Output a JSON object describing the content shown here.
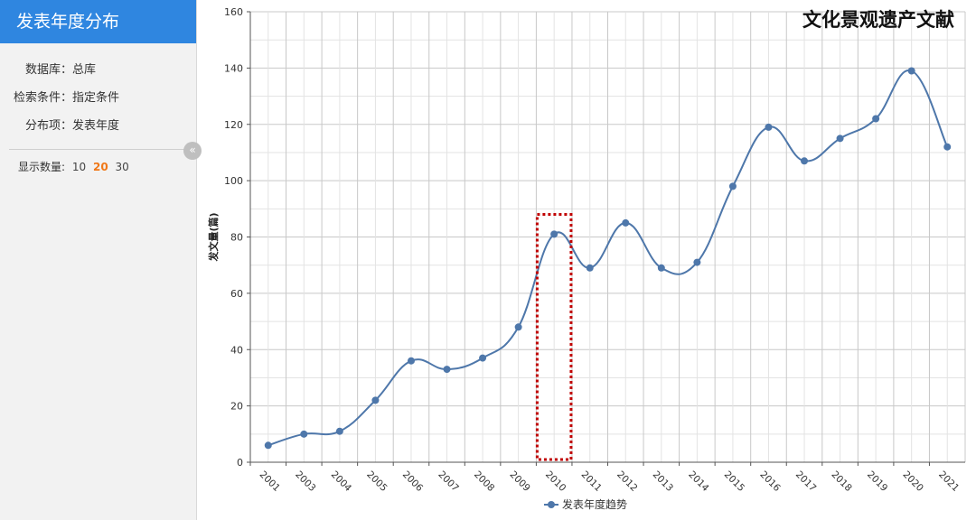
{
  "sidebar": {
    "title": "发表年度分布",
    "rows": [
      {
        "label": "数据库：",
        "value": "总库"
      },
      {
        "label": "检索条件：",
        "value": "指定条件"
      },
      {
        "label": "分布项：",
        "value": "发表年度"
      }
    ],
    "count_label": "显示数量:",
    "count_options": [
      "10",
      "20",
      "30"
    ],
    "count_selected": "20",
    "collapse_glyph": "«"
  },
  "colors": {
    "line": "#4e77aa",
    "highlight": "#c00000",
    "header": "#2f86e0"
  },
  "chart_data": {
    "type": "line",
    "title": "文化景观遗产文献",
    "ylabel": "发文量(篇)",
    "xlabel": "",
    "ylim": [
      0,
      160
    ],
    "yticks": [
      0,
      20,
      40,
      60,
      80,
      100,
      120,
      140,
      160
    ],
    "grid": true,
    "smooth": true,
    "legend": "bottom",
    "categories": [
      "2001",
      "2003",
      "2004",
      "2005",
      "2006",
      "2007",
      "2008",
      "2009",
      "2010",
      "2011",
      "2012",
      "2013",
      "2014",
      "2015",
      "2016",
      "2017",
      "2018",
      "2019",
      "2020",
      "2021"
    ],
    "series": [
      {
        "name": "发表年度趋势",
        "values": [
          6,
          10,
          11,
          22,
          36,
          33,
          37,
          48,
          81,
          69,
          85,
          69,
          71,
          98,
          119,
          107,
          115,
          122,
          139,
          112
        ]
      }
    ],
    "highlight_category": "2010"
  }
}
